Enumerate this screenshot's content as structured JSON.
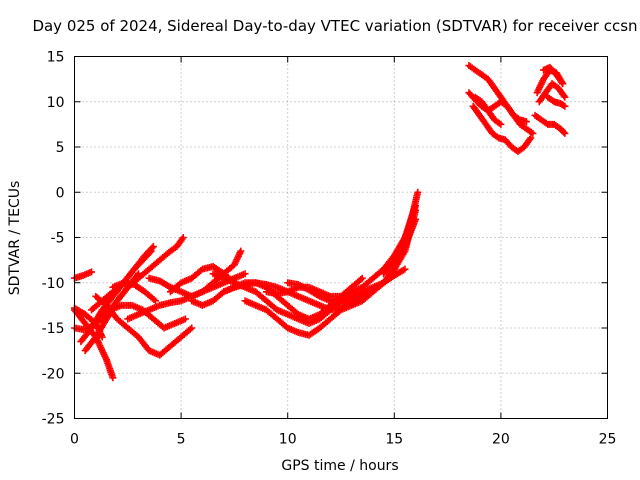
{
  "chart_data": {
    "type": "scatter",
    "title": "Day 025 of 2024, Sidereal Day-to-day VTEC variation (SDTVAR) for receiver ccsn",
    "xlabel": "GPS time / hours",
    "ylabel": "SDTVAR / TECUs",
    "xlim": [
      0,
      25
    ],
    "ylim": [
      -25,
      15
    ],
    "xticks": [
      0,
      5,
      10,
      15,
      20,
      25
    ],
    "yticks": [
      -25,
      -20,
      -15,
      -10,
      -5,
      0,
      5,
      10,
      15
    ],
    "grid": true,
    "marker": "plus",
    "color": "#ff0000",
    "series": [
      {
        "x": [
          0.0,
          0.5,
          1.0,
          1.5,
          1.8
        ],
        "y": [
          -13,
          -14.5,
          -16,
          -18.5,
          -20.5
        ]
      },
      {
        "x": [
          0.0,
          0.4,
          0.8
        ],
        "y": [
          -9.5,
          -9.2,
          -8.8
        ]
      },
      {
        "x": [
          0.0,
          0.5,
          1.0,
          1.5,
          2.0,
          2.5,
          3.0
        ],
        "y": [
          -15,
          -15.2,
          -14.5,
          -13.5,
          -12,
          -10.5,
          -9
        ]
      },
      {
        "x": [
          0.0,
          0.5,
          1.0,
          1.3
        ],
        "y": [
          -12.8,
          -13.5,
          -14.5,
          -16
        ]
      },
      {
        "x": [
          0.3,
          0.8,
          1.3,
          1.8,
          2.3,
          2.8,
          3.3,
          3.7
        ],
        "y": [
          -16.5,
          -15,
          -13,
          -11.5,
          -10,
          -8.5,
          -7,
          -6
        ]
      },
      {
        "x": [
          0.5,
          1.0,
          1.5,
          2.0,
          2.5,
          3.0,
          3.5,
          4.0,
          4.5,
          4.8,
          5.1
        ],
        "y": [
          -17.5,
          -16,
          -14,
          -12,
          -10.5,
          -9.5,
          -8.5,
          -7.5,
          -6.5,
          -6,
          -5
        ]
      },
      {
        "x": [
          0.8,
          1.3,
          1.8,
          2.3,
          2.8,
          3.2,
          3.6
        ],
        "y": [
          -13,
          -12,
          -11,
          -10,
          -8.5,
          -7.5,
          -6.5
        ]
      },
      {
        "x": [
          1.0,
          1.5,
          2.0,
          2.5,
          3.0,
          3.5,
          4.0,
          4.5,
          5.0,
          5.5
        ],
        "y": [
          -11.5,
          -12.5,
          -14,
          -15,
          -16,
          -17.5,
          -18,
          -17,
          -16,
          -15
        ]
      },
      {
        "x": [
          1.2,
          1.7,
          2.2,
          2.7,
          3.2,
          3.7,
          4.2,
          4.7,
          5.2
        ],
        "y": [
          -13.5,
          -13,
          -12.5,
          -12.5,
          -13,
          -14,
          -15,
          -14.5,
          -14
        ]
      },
      {
        "x": [
          1.8,
          2.3,
          2.8,
          3.3,
          3.8
        ],
        "y": [
          -10.5,
          -10,
          -10.2,
          -11,
          -12
        ]
      },
      {
        "x": [
          2.5,
          3.0,
          3.5,
          4.0,
          4.5,
          5.0,
          5.5,
          6.0,
          6.5,
          7.0,
          7.5,
          8.0
        ],
        "y": [
          -14,
          -13.5,
          -13,
          -12.5,
          -12.2,
          -12,
          -11.5,
          -11,
          -10.5,
          -10,
          -9.5,
          -9
        ]
      },
      {
        "x": [
          3.5,
          4.0,
          4.5,
          5.0,
          5.5,
          6.0,
          6.5,
          7.0,
          7.5,
          7.8
        ],
        "y": [
          -9.5,
          -9.8,
          -10.5,
          -11,
          -11.5,
          -11,
          -10,
          -9,
          -8,
          -6.5
        ]
      },
      {
        "x": [
          4.5,
          5.0,
          5.5,
          6.0,
          6.5,
          7.0,
          7.5
        ],
        "y": [
          -11,
          -10,
          -9.5,
          -8.5,
          -8.2,
          -9,
          -10
        ]
      },
      {
        "x": [
          5.5,
          6.0,
          6.5,
          7.0,
          7.5,
          8.0,
          8.5,
          9.0,
          9.5,
          10.0,
          10.5,
          11.0,
          11.5,
          12.0,
          12.5,
          13.0,
          13.5,
          14.0,
          14.5,
          15.0
        ],
        "y": [
          -12,
          -12.5,
          -12,
          -11,
          -10.5,
          -10.2,
          -10,
          -10.2,
          -10.5,
          -11,
          -11.5,
          -12,
          -12.5,
          -13,
          -12.8,
          -12.2,
          -11.5,
          -10.8,
          -10,
          -9
        ]
      },
      {
        "x": [
          6.5,
          7.0,
          7.5,
          8.0,
          8.5,
          9.0,
          9.5,
          10.0,
          10.5,
          11.0,
          11.5,
          12.0,
          12.5,
          13.0,
          13.5,
          14.0,
          14.5,
          15.0,
          15.5
        ],
        "y": [
          -9,
          -9.5,
          -10,
          -10.5,
          -11,
          -12,
          -13,
          -13.5,
          -14,
          -14.5,
          -14,
          -13,
          -12,
          -11.5,
          -11,
          -10.5,
          -10,
          -9.2,
          -8.5
        ]
      },
      {
        "x": [
          7.0,
          7.5,
          8.0,
          8.5,
          9.0,
          9.5,
          10.0,
          10.5,
          11.0,
          11.5,
          12.0,
          12.5,
          13.0,
          13.5
        ],
        "y": [
          -11,
          -10.5,
          -10,
          -10,
          -10.5,
          -11.5,
          -12.5,
          -13.5,
          -14,
          -13.5,
          -12.5,
          -11.5,
          -10.5,
          -9.5
        ]
      },
      {
        "x": [
          8.0,
          8.5,
          9.0,
          9.5,
          10.0,
          10.5,
          11.0,
          11.5,
          12.0,
          12.5,
          13.0,
          13.5,
          14.0,
          14.5,
          15.0,
          15.5,
          16.0
        ],
        "y": [
          -12,
          -12.5,
          -13,
          -14,
          -15,
          -15.5,
          -15.8,
          -15,
          -14,
          -13,
          -12.5,
          -12,
          -11,
          -10,
          -8.5,
          -6,
          -3
        ]
      },
      {
        "x": [
          9.0,
          9.5,
          10.0,
          10.5,
          11.0,
          11.5,
          12.0,
          12.5,
          13.0,
          13.5,
          14.0,
          14.5,
          15.0,
          15.5,
          16.0
        ],
        "y": [
          -11,
          -11.2,
          -11,
          -10.5,
          -10.5,
          -11,
          -11.5,
          -11.5,
          -11,
          -10.5,
          -9.5,
          -8.5,
          -7,
          -5,
          -1.5
        ]
      },
      {
        "x": [
          10.0,
          10.5,
          11.0,
          11.5,
          12.0,
          12.5,
          13.0,
          13.5,
          14.0,
          14.5,
          15.0,
          15.5,
          16.0
        ],
        "y": [
          -10,
          -10.2,
          -10.8,
          -11.5,
          -12,
          -12.2,
          -12,
          -11.5,
          -10.8,
          -10,
          -8.5,
          -6.5,
          -2
        ]
      },
      {
        "x": [
          14.5,
          15.0,
          15.3,
          15.6,
          15.9,
          16.1
        ],
        "y": [
          -9,
          -7.5,
          -6,
          -4.5,
          -2,
          0
        ]
      },
      {
        "x": [
          18.5,
          18.8,
          19.1,
          19.4,
          19.7,
          20.0,
          20.3,
          20.6,
          20.9,
          21.2
        ],
        "y": [
          14,
          13.5,
          13,
          12.5,
          11.5,
          10.5,
          9.5,
          8.5,
          8,
          7.8
        ]
      },
      {
        "x": [
          18.5,
          18.8,
          19.1,
          19.4,
          19.7,
          20.0,
          20.3,
          20.6,
          20.9,
          21.2,
          21.5
        ],
        "y": [
          11,
          10.2,
          9.5,
          9,
          9.5,
          10,
          9.5,
          8.5,
          7.5,
          7,
          6.5
        ]
      },
      {
        "x": [
          18.7,
          19.0,
          19.3,
          19.6,
          19.9,
          20.2,
          20.5,
          20.8,
          21.1,
          21.4
        ],
        "y": [
          9.5,
          8.5,
          7.5,
          6.5,
          6,
          5.8,
          5,
          4.5,
          5,
          6
        ]
      },
      {
        "x": [
          18.8,
          19.1,
          19.4,
          19.7,
          20.0
        ],
        "y": [
          10.5,
          10,
          9,
          8,
          7.5
        ]
      },
      {
        "x": [
          21.7,
          22.0,
          22.3,
          22.6,
          22.9
        ],
        "y": [
          11,
          12.5,
          13.5,
          13.2,
          12
        ]
      },
      {
        "x": [
          21.8,
          22.1,
          22.4,
          22.7,
          23.0
        ],
        "y": [
          10,
          11,
          12,
          11.5,
          10.5
        ]
      },
      {
        "x": [
          21.6,
          21.9,
          22.2,
          22.5,
          22.8,
          23.0
        ],
        "y": [
          8.5,
          8,
          7.5,
          7.5,
          7,
          6.5
        ]
      },
      {
        "x": [
          22.0,
          22.3,
          22.6,
          22.9
        ],
        "y": [
          13.5,
          13.8,
          13,
          12
        ]
      },
      {
        "x": [
          22.2,
          22.5,
          22.8,
          23.0
        ],
        "y": [
          10.5,
          10,
          9.8,
          9.5
        ]
      }
    ]
  }
}
